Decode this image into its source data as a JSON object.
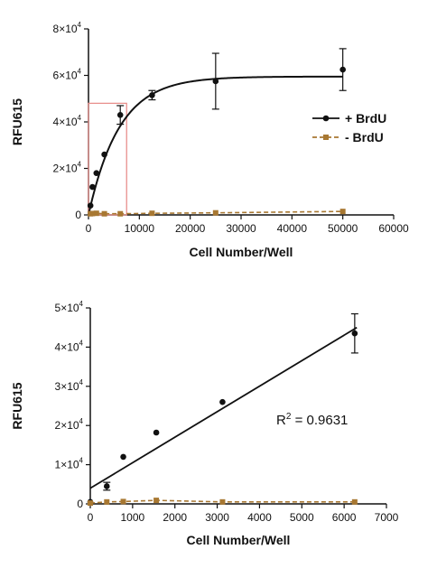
{
  "chart_data": [
    {
      "type": "scatter",
      "title": "",
      "xlabel": "Cell Number/Well",
      "ylabel": "RFU615",
      "xlim": [
        0,
        60000
      ],
      "ylim": [
        0,
        80000
      ],
      "xticks": [
        {
          "value": 0,
          "label": "0"
        },
        {
          "value": 10000,
          "label": "10000"
        },
        {
          "value": 20000,
          "label": "20000"
        },
        {
          "value": 30000,
          "label": "30000"
        },
        {
          "value": 40000,
          "label": "40000"
        },
        {
          "value": 50000,
          "label": "50000"
        },
        {
          "value": 60000,
          "label": "60000"
        }
      ],
      "yticks": [
        {
          "value": 0,
          "label": "0"
        },
        {
          "value": 20000,
          "label": "2×10"
        },
        {
          "value": 40000,
          "label": "4×10"
        },
        {
          "value": 60000,
          "label": "6×10"
        },
        {
          "value": 80000,
          "label": "8×10"
        }
      ],
      "ytick_exponent": "4",
      "legend": {
        "placement": "right",
        "entries": [
          "+ BrdU",
          "- BrdU"
        ]
      },
      "highlight_box": {
        "x": [
          0,
          7500
        ],
        "y": [
          0,
          48000
        ],
        "color": "#e8908c"
      },
      "series": [
        {
          "name": "+ BrdU",
          "color": "#111111",
          "marker": "circle",
          "x": [
            390,
            780,
            1560,
            3125,
            6250,
            12500,
            25000,
            50000
          ],
          "y": [
            4000,
            12000,
            18000,
            26000,
            43000,
            51500,
            57500,
            62500
          ],
          "err": [
            0,
            0,
            0,
            0,
            4000,
            2000,
            12000,
            9000
          ],
          "fit": {
            "model": "one-phase association",
            "plateau": 59500,
            "k": 0.000165
          }
        },
        {
          "name": "- BrdU",
          "color": "#a87832",
          "marker": "square",
          "linestyle": "dashed",
          "x": [
            390,
            780,
            1560,
            3125,
            6250,
            12500,
            25000,
            50000
          ],
          "y": [
            500,
            600,
            700,
            500,
            500,
            700,
            900,
            1500
          ],
          "err": [
            0,
            0,
            0,
            0,
            0,
            0,
            0,
            0
          ]
        }
      ]
    },
    {
      "type": "scatter",
      "title": "",
      "xlabel": "Cell Number/Well",
      "ylabel": "RFU615",
      "xlim": [
        0,
        7000
      ],
      "ylim": [
        0,
        50000
      ],
      "xticks": [
        {
          "value": 0,
          "label": "0"
        },
        {
          "value": 1000,
          "label": "1000"
        },
        {
          "value": 2000,
          "label": "2000"
        },
        {
          "value": 3000,
          "label": "3000"
        },
        {
          "value": 4000,
          "label": "4000"
        },
        {
          "value": 5000,
          "label": "5000"
        },
        {
          "value": 6000,
          "label": "6000"
        },
        {
          "value": 7000,
          "label": "7000"
        }
      ],
      "yticks": [
        {
          "value": 0,
          "label": "0"
        },
        {
          "value": 10000,
          "label": "1×10"
        },
        {
          "value": 20000,
          "label": "2×10"
        },
        {
          "value": 30000,
          "label": "3×10"
        },
        {
          "value": 40000,
          "label": "4×10"
        },
        {
          "value": 50000,
          "label": "5×10"
        }
      ],
      "ytick_exponent": "4",
      "annotation": {
        "prefix": "R",
        "superscript": "2",
        "text": " = 0.9631"
      },
      "series": [
        {
          "name": "+ BrdU",
          "color": "#111111",
          "marker": "circle",
          "x": [
            0,
            390,
            780,
            1560,
            3125,
            6250
          ],
          "y": [
            500,
            4500,
            12000,
            18200,
            26000,
            43500
          ],
          "err": [
            0,
            1000,
            0,
            0,
            0,
            5000
          ],
          "fit": {
            "model": "linear",
            "x": [
              0,
              6300
            ],
            "y": [
              4000,
              45000
            ]
          }
        },
        {
          "name": "- BrdU",
          "color": "#a87832",
          "marker": "square",
          "linestyle": "dashed",
          "x": [
            0,
            390,
            780,
            1560,
            3125,
            6250
          ],
          "y": [
            200,
            500,
            600,
            900,
            500,
            500
          ],
          "err": [
            0,
            0,
            0,
            0,
            0,
            0
          ]
        }
      ]
    }
  ]
}
